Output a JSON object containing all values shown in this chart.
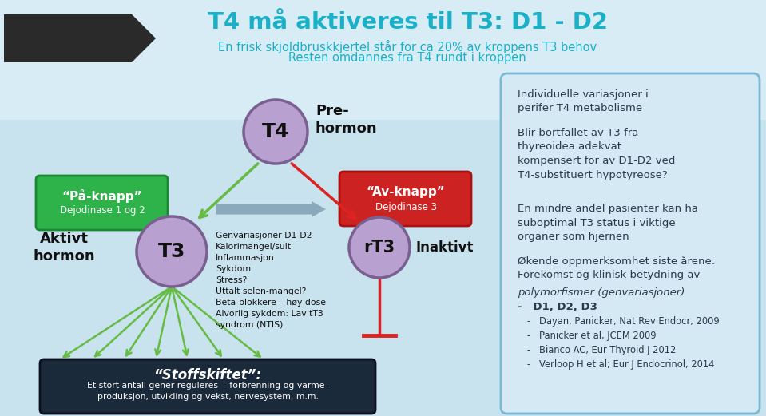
{
  "title": "T4 må aktiveres til T3: D1 - D2",
  "subtitle1": "En frisk skjoldbruskkjertel står for ca 20% av kroppens T3 behov",
  "subtitle2": "Resten omdannes fra T4 rundt i kroppen",
  "title_color": "#1ab0c8",
  "subtitle_color": "#1ab0c8",
  "circle_T4_color": "#b8a0d0",
  "circle_T3_color": "#b8a0d0",
  "circle_rT3_color": "#b8a0d0",
  "circle_border_color": "#7a6090",
  "green_box_color": "#2db34a",
  "green_box_border": "#1a8a30",
  "red_box_color": "#cc2222",
  "red_box_border": "#aa1111",
  "dark_box_color": "#1a2a3a",
  "right_box_fill": "#d5e9f5",
  "right_box_border": "#7ab8d4",
  "arrow_gray_color": "#8aaabb",
  "arrow_green_color": "#66bb44",
  "arrow_red_color": "#dd2222",
  "text_dark": "#2a3a4a",
  "bg_color": "#cce4f0",
  "pentagon_color": "#2a2a2a",
  "paa_knapp_line1": "“På-knapp”",
  "paa_knapp_line2": "Dejodinase 1 og 2",
  "av_knapp_line1": "“Av-knapp”",
  "av_knapp_line2": "Dejodinase 3",
  "middle_text": "Genvariasjoner D1-D2\nKalorimangel/sult\nInflammasjon\nSykdom\nStress?\nUttalt selen-mangel?\nBeta-blokkere – høy dose\nAlvorlig sykdom: Lav tT3\nsyndrom (NTIS)",
  "stoffskiftet_title": "“Stoffskiftet”:",
  "stoffskiftet_sub": "Et stort antall gener reguleres  - forbrenning og varme-\nproduksjon, utvikling og vekst, nervesystem, m.m.",
  "right_line1": "Individuelle variasjoner i\nperifer T4 metabolisme",
  "right_line2": "Blir bortfallet av T3 fra\nthyreoidea adekvat\nkompensert for av D1-D2 ved\nT4-substituert hypotyreose?",
  "right_line3": "En mindre andel pasienter kan ha\nsuboptimal T3 status i viktige\norganer som hjernen",
  "right_line4a": "Økende oppmerksomhet siste årene:\nForekomst og klinisk betydning av",
  "right_line4b": "polymorfismer (genvariasjoner)",
  "right_line4c": "-   D1, D2, D3",
  "right_line4d": "-   Dayan, Panicker, Nat Rev Endocr, 2009\n-   Panicker et al, JCEM 2009\n-   Bianco AC, Eur Thyroid J 2012\n-   Verloop H et al; Eur J Endocrinol, 2014"
}
